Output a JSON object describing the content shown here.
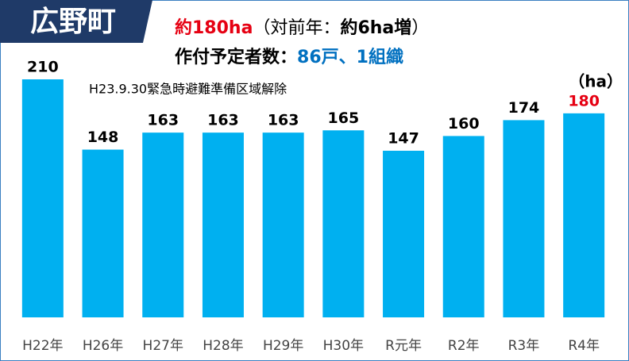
{
  "badge": "広野町",
  "chart_data": {
    "type": "bar",
    "title_segments": [
      {
        "text": "約180ha",
        "color": "#e60012",
        "bold": true
      },
      {
        "text": "（対前年：",
        "color": "#000000",
        "bold": false
      },
      {
        "text": "約6ha増",
        "color": "#000000",
        "bold": true
      },
      {
        "text": "）",
        "color": "#000000",
        "bold": false
      }
    ],
    "subtitle_segments": [
      {
        "text": "作付予定者数：",
        "color": "#000000",
        "bold": true
      },
      {
        "text": "86戸、1組織",
        "color": "#0070c0",
        "bold": true
      }
    ],
    "annotation": "H23.9.30緊急時避難準備区域解除",
    "unit": "（ha）",
    "categories": [
      "H22年",
      "H26年",
      "H27年",
      "H28年",
      "H29年",
      "H30年",
      "R元年",
      "R2年",
      "R3年",
      "R4年"
    ],
    "values": [
      210,
      148,
      163,
      163,
      163,
      165,
      147,
      160,
      174,
      180
    ],
    "value_label_colors": [
      "#000000",
      "#000000",
      "#000000",
      "#000000",
      "#000000",
      "#000000",
      "#000000",
      "#000000",
      "#000000",
      "#e60012"
    ],
    "color": "#00b0f0"
  }
}
